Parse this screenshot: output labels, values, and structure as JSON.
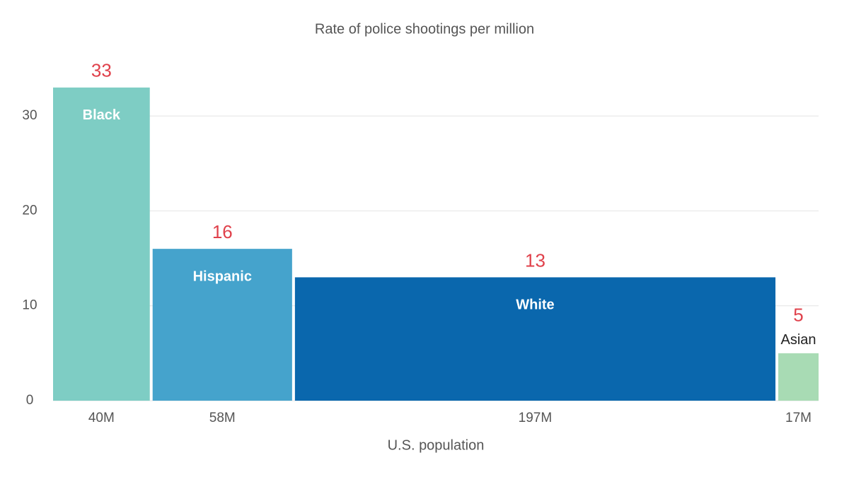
{
  "chart_data": {
    "type": "marimekko",
    "title": "Rate of police shootings per million",
    "x_label": "U.S. population",
    "categories": [
      "Black",
      "Hispanic",
      "White",
      "Asian"
    ],
    "values": [
      33,
      16,
      13,
      5
    ],
    "widths": [
      40000000,
      58000000,
      197000000,
      17000000
    ],
    "width_labels": [
      "40M",
      "58M",
      "197M",
      "17M"
    ],
    "colors": [
      "#7ecdc4",
      "#45a3cc",
      "#0a67ad",
      "#a8dbb4"
    ],
    "value_label_color": "#e0414b",
    "ylim": [
      0,
      35
    ],
    "yticks": [
      0,
      10,
      20,
      30
    ],
    "grid": true
  }
}
